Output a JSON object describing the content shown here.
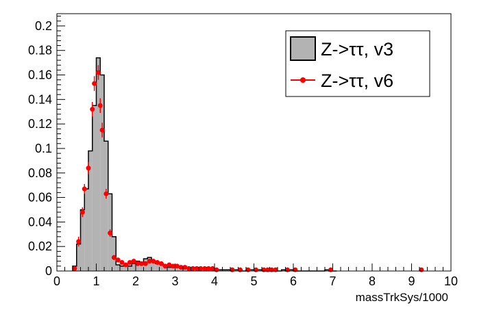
{
  "chart_data": {
    "type": "bar",
    "xlabel": "massTrkSys/1000",
    "ylabel": "",
    "xlim": [
      0,
      10
    ],
    "ylim": [
      0,
      0.21
    ],
    "x_ticks": [
      0,
      1,
      2,
      3,
      4,
      5,
      6,
      7,
      8,
      9,
      10
    ],
    "y_ticks": [
      0,
      0.02,
      0.04,
      0.06,
      0.08,
      0.1,
      0.12,
      0.14,
      0.16,
      0.18,
      0.2
    ],
    "x_tick_labels": [
      "0",
      "1",
      "2",
      "3",
      "4",
      "5",
      "6",
      "7",
      "8",
      "9",
      "10"
    ],
    "y_tick_labels": [
      "0",
      "0.02",
      "0.04",
      "0.06",
      "0.08",
      "0.1",
      "0.12",
      "0.14",
      "0.16",
      "0.18",
      "0.2"
    ],
    "grid": false,
    "legend_position": "top-right",
    "series": [
      {
        "name": "Z->ττ, v3",
        "style": "filled-histogram",
        "bin_width": 0.1,
        "bin_low_edges": [
          0.4,
          0.5,
          0.6,
          0.7,
          0.8,
          0.9,
          1.0,
          1.1,
          1.2,
          1.3,
          1.4,
          1.5,
          1.6,
          1.7,
          1.8,
          1.9,
          2.0,
          2.1,
          2.2,
          2.3,
          2.4,
          2.5,
          2.6,
          2.7,
          2.8,
          2.9,
          3.0,
          3.1,
          3.2,
          3.3,
          3.4,
          3.5,
          3.6,
          3.7,
          3.8,
          3.9,
          4.0,
          4.1,
          4.2,
          4.3,
          4.4,
          4.5,
          4.6,
          4.7,
          4.8,
          4.9,
          5.0,
          5.1,
          5.2,
          5.3,
          5.4,
          5.5,
          5.6,
          5.7,
          5.8,
          5.9,
          6.0,
          6.1,
          6.2,
          6.3,
          6.4,
          6.5,
          6.6,
          6.7,
          6.8,
          6.9,
          7.0
        ],
        "values": [
          0.004,
          0.022,
          0.05,
          0.067,
          0.098,
          0.135,
          0.174,
          0.16,
          0.106,
          0.063,
          0.028,
          0.005,
          0.004,
          0.005,
          0.004,
          0.006,
          0.008,
          0.006,
          0.01,
          0.011,
          0.008,
          0.006,
          0.006,
          0.004,
          0.003,
          0.003,
          0.004,
          0.003,
          0.002,
          0.002,
          0.002,
          0.003,
          0.002,
          0.002,
          0.001,
          0.002,
          0.001,
          0.001,
          0.001,
          0.001,
          0.001,
          0.001,
          0.001,
          0.0,
          0.001,
          0.001,
          0.001,
          0.001,
          0.001,
          0.0,
          0.0,
          0.0,
          0.0,
          0.001,
          0.0,
          0.001,
          0.0,
          0.0,
          0.0,
          0.0,
          0.0,
          0.0,
          0.0,
          0.0,
          0.001,
          0.0,
          0.0
        ],
        "fill_color": "#b3b3b3",
        "line_color": "#000000"
      },
      {
        "name": "Z->ττ, v6",
        "style": "markers-with-error-bars",
        "x": [
          0.45,
          0.55,
          0.65,
          0.7,
          0.8,
          0.9,
          0.95,
          1.05,
          1.1,
          1.15,
          1.25,
          1.35,
          1.45,
          1.55,
          1.65,
          1.75,
          1.85,
          1.95,
          2.05,
          2.15,
          2.25,
          2.35,
          2.45,
          2.55,
          2.65,
          2.75,
          2.85,
          2.95,
          3.05,
          3.15,
          3.25,
          3.35,
          3.45,
          3.55,
          3.65,
          3.75,
          3.85,
          3.95,
          4.05,
          4.45,
          4.65,
          4.85,
          5.05,
          5.25,
          5.35,
          5.45,
          5.55,
          5.85,
          6.05,
          6.95,
          9.25
        ],
        "y": [
          0.002,
          0.024,
          0.048,
          0.067,
          0.084,
          0.132,
          0.153,
          0.162,
          0.135,
          0.115,
          0.063,
          0.031,
          0.011,
          0.009,
          0.007,
          0.005,
          0.007,
          0.008,
          0.006,
          0.006,
          0.006,
          0.008,
          0.008,
          0.007,
          0.006,
          0.004,
          0.005,
          0.004,
          0.004,
          0.003,
          0.003,
          0.002,
          0.002,
          0.002,
          0.002,
          0.002,
          0.002,
          0.002,
          0.001,
          0.001,
          0.001,
          0.001,
          0.001,
          0.001,
          0.001,
          0.001,
          0.001,
          0.001,
          0.001,
          0.001,
          0.001
        ],
        "errors": [
          0.002,
          0.004,
          0.004,
          0.004,
          0.005,
          0.006,
          0.006,
          0.006,
          0.006,
          0.006,
          0.004,
          0.003,
          0.002,
          0.002,
          0.002,
          0.0015,
          0.0015,
          0.0015,
          0.0015,
          0.0015,
          0.0015,
          0.0015,
          0.0015,
          0.0015,
          0.0015,
          0.001,
          0.001,
          0.001,
          0.001,
          0.001,
          0.001,
          0.001,
          0.001,
          0.001,
          0.001,
          0.001,
          0.001,
          0.001,
          0.001,
          0.001,
          0.001,
          0.001,
          0.001,
          0.001,
          0.001,
          0.001,
          0.001,
          0.001,
          0.001,
          0.001,
          0.001
        ],
        "color": "#ff0000"
      }
    ]
  }
}
